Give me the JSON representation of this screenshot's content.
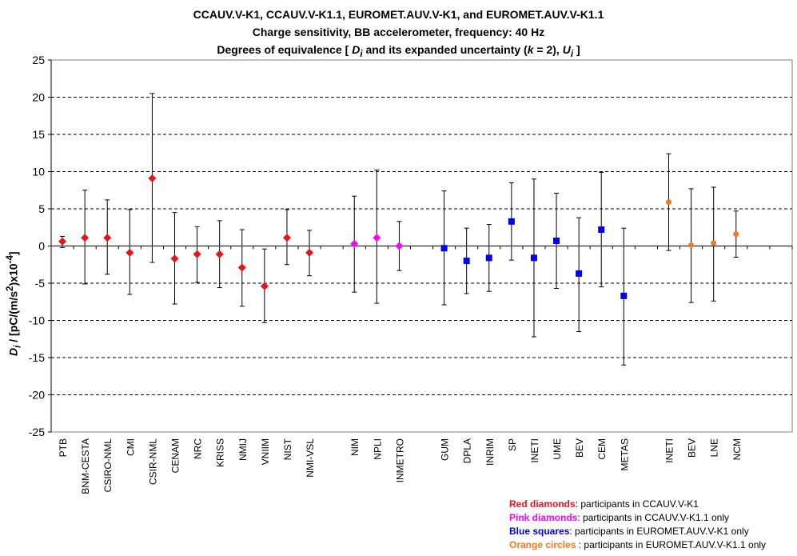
{
  "title": {
    "line1": "CCAUV.V-K1, CCAUV.V-K1.1, EUROMET.AUV.V-K1, and EUROMET.AUV.V-K1.1",
    "line2": "Charge sensitivity, BB accelerometer, frequency: 40 Hz",
    "line3_pre": "Degrees of equivalence [ ",
    "line3_d": "D",
    "line3_i1": "i",
    "line3_mid": " and its expanded uncertainty (",
    "line3_k": "k",
    "line3_mid2": " = 2), ",
    "line3_u": "U",
    "line3_i2": "i",
    "line3_end": " ]"
  },
  "ylabel": {
    "d": "D",
    "i": "i",
    "rest1": " / [pC/(m/s",
    "sup2": "2",
    "rest2": ")x10",
    "sup": "-4",
    "rest3": "]"
  },
  "legend": [
    {
      "bold": "Red diamonds",
      "text": ": participants in CCAUV.V-K1",
      "color": "#e8141a"
    },
    {
      "bold": "Pink diamonds",
      "text": ": participants in CCAUV.V-K1.1 only",
      "color": "#ff00ff"
    },
    {
      "bold": "Blue squares",
      "text": ": participants in EUROMET.AUV.V-K1 only",
      "color": "#0000e6"
    },
    {
      "bold": "Orange circles",
      "text": " : participants in EUROMET.AUV.V-K1.1 only",
      "color": "#f47a20"
    }
  ],
  "chart_data": {
    "type": "scatter",
    "ylim": [
      -25,
      25
    ],
    "yticks": [
      25,
      20,
      15,
      10,
      5,
      0,
      -5,
      -10,
      -15,
      -20,
      -25
    ],
    "grid": "horizontal dashed",
    "x_slots": 33,
    "series": [
      {
        "name": "participants in CCAUV.V-K1",
        "marker": "diamond",
        "color": "#e8141a",
        "points": [
          {
            "label": "PTB",
            "slot": 1,
            "value": 0.6,
            "upper": 1.3,
            "lower": -0.2
          },
          {
            "label": "BNM-CESTA",
            "slot": 2,
            "value": 1.1,
            "upper": 7.5,
            "lower": -5.1
          },
          {
            "label": "CSIRO-NML",
            "slot": 3,
            "value": 1.1,
            "upper": 6.2,
            "lower": -3.8
          },
          {
            "label": "CMI",
            "slot": 4,
            "value": -0.9,
            "upper": 4.9,
            "lower": -6.5
          },
          {
            "label": "CSIR-NML",
            "slot": 5,
            "value": 9.1,
            "upper": 20.5,
            "lower": -2.2
          },
          {
            "label": "CENAM",
            "slot": 6,
            "value": -1.7,
            "upper": 4.5,
            "lower": -7.8
          },
          {
            "label": "NRC",
            "slot": 7,
            "value": -1.1,
            "upper": 2.6,
            "lower": -4.9
          },
          {
            "label": "KRISS",
            "slot": 8,
            "value": -1.1,
            "upper": 3.4,
            "lower": -5.6
          },
          {
            "label": "NMIJ",
            "slot": 9,
            "value": -2.9,
            "upper": 2.2,
            "lower": -8.1
          },
          {
            "label": "VNIIM",
            "slot": 10,
            "value": -5.4,
            "upper": -0.4,
            "lower": -10.3
          },
          {
            "label": "NIST",
            "slot": 11,
            "value": 1.1,
            "upper": 4.9,
            "lower": -2.5
          },
          {
            "label": "NMI-VSL",
            "slot": 12,
            "value": -0.9,
            "upper": 2.1,
            "lower": -4.0
          }
        ]
      },
      {
        "name": "participants in CCAUV.V-K1.1 only",
        "marker": "diamond",
        "color": "#ff00ff",
        "points": [
          {
            "label": "NIM",
            "slot": 14,
            "value": 0.3,
            "upper": 6.7,
            "lower": -6.2
          },
          {
            "label": "NPLI",
            "slot": 15,
            "value": 1.1,
            "upper": 10.2,
            "lower": -7.7
          },
          {
            "label": "INMETRO",
            "slot": 16,
            "value": 0.0,
            "upper": 3.3,
            "lower": -3.3
          }
        ]
      },
      {
        "name": "participants in EUROMET.AUV.V-K1 only",
        "marker": "square",
        "color": "#0000e6",
        "points": [
          {
            "label": "GUM",
            "slot": 18,
            "value": -0.3,
            "upper": 7.4,
            "lower": -7.9
          },
          {
            "label": "DPLA",
            "slot": 19,
            "value": -2.0,
            "upper": 2.4,
            "lower": -6.4
          },
          {
            "label": "INRIM",
            "slot": 20,
            "value": -1.6,
            "upper": 2.9,
            "lower": -6.1
          },
          {
            "label": "SP",
            "slot": 21,
            "value": 3.3,
            "upper": 8.5,
            "lower": -1.9
          },
          {
            "label": "INETI",
            "slot": 22,
            "value": -1.6,
            "upper": 9.0,
            "lower": -12.2
          },
          {
            "label": "UME",
            "slot": 23,
            "value": 0.7,
            "upper": 7.1,
            "lower": -5.7
          },
          {
            "label": "BEV",
            "slot": 24,
            "value": -3.7,
            "upper": 3.8,
            "lower": -11.5
          },
          {
            "label": "CEM",
            "slot": 25,
            "value": 2.2,
            "upper": 9.9,
            "lower": -5.5
          },
          {
            "label": "METAS",
            "slot": 26,
            "value": -6.7,
            "upper": 2.4,
            "lower": -16.0
          }
        ]
      },
      {
        "name": "participants in EUROMET.AUV.V-K1.1 only",
        "marker": "circle",
        "color": "#f47a20",
        "points": [
          {
            "label": "INETI",
            "slot": 28,
            "value": 5.9,
            "upper": 12.4,
            "lower": -0.6
          },
          {
            "label": "BEV",
            "slot": 29,
            "value": 0.1,
            "upper": 7.7,
            "lower": -7.6
          },
          {
            "label": "LNE",
            "slot": 30,
            "value": 0.4,
            "upper": 7.9,
            "lower": -7.4
          },
          {
            "label": "NCM",
            "slot": 31,
            "value": 1.6,
            "upper": 4.7,
            "lower": -1.5
          }
        ]
      }
    ]
  }
}
